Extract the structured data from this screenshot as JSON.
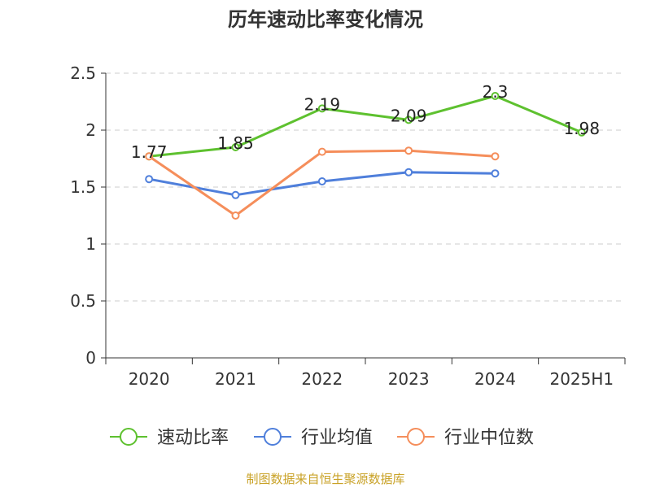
{
  "chart_data": {
    "type": "line",
    "title": "历年速动比率变化情况",
    "categories": [
      "2020",
      "2021",
      "2022",
      "2023",
      "2024",
      "2025H1"
    ],
    "ylim": [
      0,
      2.5
    ],
    "yticks": [
      "0",
      "0.5",
      "1",
      "1.5",
      "2",
      "2.5"
    ],
    "grid": true,
    "legend_position": "bottom",
    "series": [
      {
        "name": "速动比率",
        "color": "#5ec12f",
        "values": [
          1.77,
          1.85,
          2.19,
          2.09,
          2.3,
          1.98
        ],
        "labels": [
          "1.77",
          "1.85",
          "2.19",
          "2.09",
          "2.3",
          "1.98"
        ]
      },
      {
        "name": "行业均值",
        "color": "#4f7fdb",
        "values": [
          1.57,
          1.43,
          1.55,
          1.63,
          1.62,
          null
        ]
      },
      {
        "name": "行业中位数",
        "color": "#f58e5b",
        "values": [
          1.77,
          1.25,
          1.81,
          1.82,
          1.77,
          null
        ]
      }
    ]
  },
  "source": "制图数据来自恒生聚源数据库"
}
